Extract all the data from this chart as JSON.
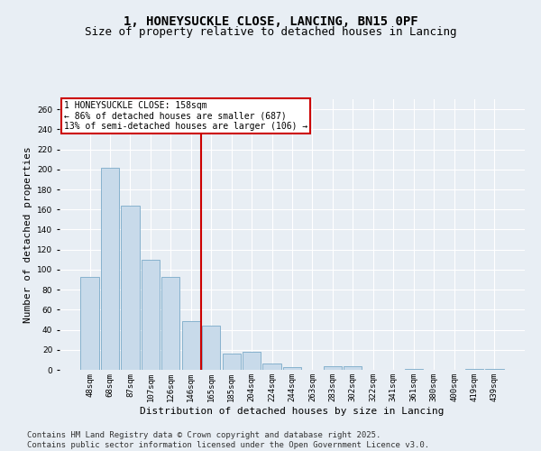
{
  "title": "1, HONEYSUCKLE CLOSE, LANCING, BN15 0PF",
  "subtitle": "Size of property relative to detached houses in Lancing",
  "xlabel": "Distribution of detached houses by size in Lancing",
  "ylabel": "Number of detached properties",
  "categories": [
    "48sqm",
    "68sqm",
    "87sqm",
    "107sqm",
    "126sqm",
    "146sqm",
    "165sqm",
    "185sqm",
    "204sqm",
    "224sqm",
    "244sqm",
    "263sqm",
    "283sqm",
    "302sqm",
    "322sqm",
    "341sqm",
    "361sqm",
    "380sqm",
    "400sqm",
    "419sqm",
    "439sqm"
  ],
  "values": [
    93,
    202,
    164,
    110,
    93,
    49,
    44,
    16,
    18,
    6,
    3,
    0,
    4,
    4,
    0,
    0,
    1,
    0,
    0,
    1,
    1
  ],
  "bar_color": "#c8daea",
  "bar_edge_color": "#7aaac8",
  "vline_x_index": 6,
  "annotation_line1": "1 HONEYSUCKLE CLOSE: 158sqm",
  "annotation_line2": "← 86% of detached houses are smaller (687)",
  "annotation_line3": "13% of semi-detached houses are larger (106) →",
  "annotation_box_facecolor": "#ffffff",
  "annotation_box_edgecolor": "#cc0000",
  "vline_color": "#cc0000",
  "bg_color": "#e8eef4",
  "ylim": [
    0,
    270
  ],
  "yticks": [
    0,
    20,
    40,
    60,
    80,
    100,
    120,
    140,
    160,
    180,
    200,
    220,
    240,
    260
  ],
  "footer1": "Contains HM Land Registry data © Crown copyright and database right 2025.",
  "footer2": "Contains public sector information licensed under the Open Government Licence v3.0.",
  "title_fontsize": 10,
  "subtitle_fontsize": 9,
  "ylabel_fontsize": 8,
  "xlabel_fontsize": 8,
  "tick_fontsize": 6.5,
  "annotation_fontsize": 7,
  "footer_fontsize": 6.5
}
